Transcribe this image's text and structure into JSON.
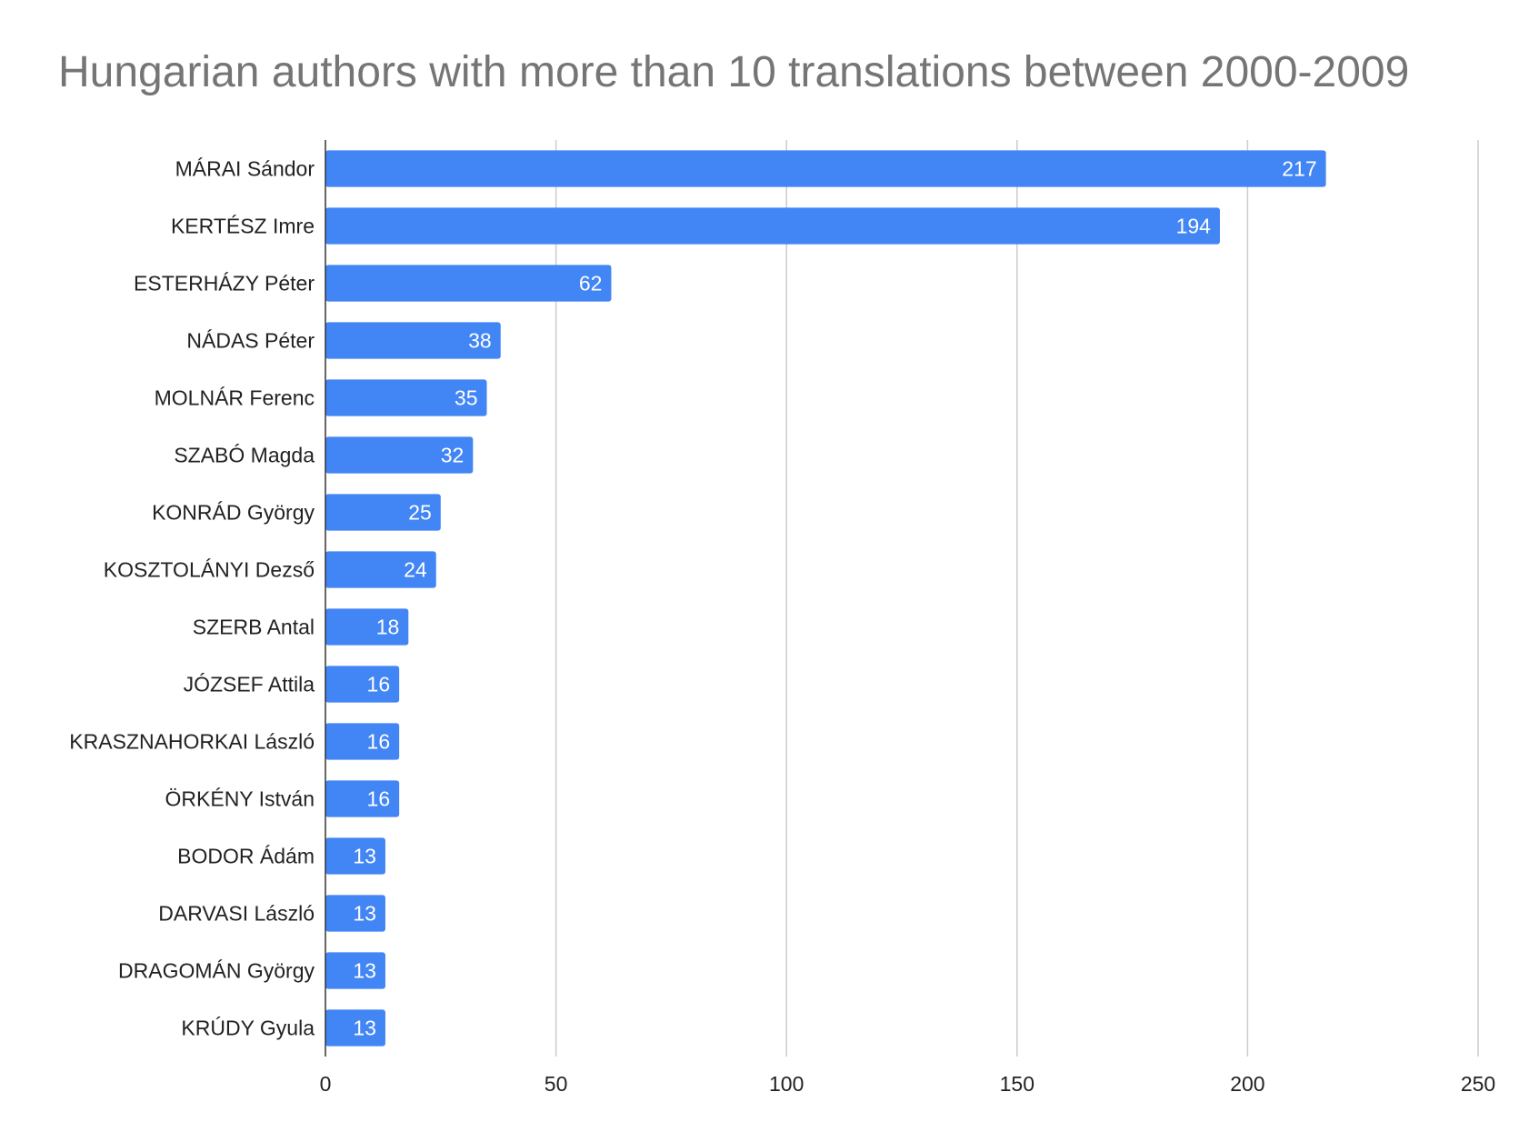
{
  "chart_data": {
    "type": "bar",
    "orientation": "horizontal",
    "title": "Hungarian authors with more than 10 translations between 2000-2009",
    "xlabel": "",
    "ylabel": "",
    "xlim": [
      0,
      250
    ],
    "x_ticks": [
      0,
      50,
      100,
      150,
      200,
      250
    ],
    "grid": true,
    "legend": "none",
    "bar_color": "#4285F4",
    "categories": [
      "MÁRAI Sándor",
      "KERTÉSZ Imre",
      "ESTERHÁZY Péter",
      "NÁDAS Péter",
      "MOLNÁR Ferenc",
      "SZABÓ Magda",
      "KONRÁD György",
      "KOSZTOLÁNYI Dezső",
      "SZERB Antal",
      "JÓZSEF Attila",
      "KRASZNAHORKAI László",
      "ÖRKÉNY István",
      "BODOR Ádám",
      "DARVASI László",
      "DRAGOMÁN György",
      "KRÚDY Gyula"
    ],
    "values": [
      217,
      194,
      62,
      38,
      35,
      32,
      25,
      24,
      18,
      16,
      16,
      16,
      13,
      13,
      13,
      13
    ]
  }
}
